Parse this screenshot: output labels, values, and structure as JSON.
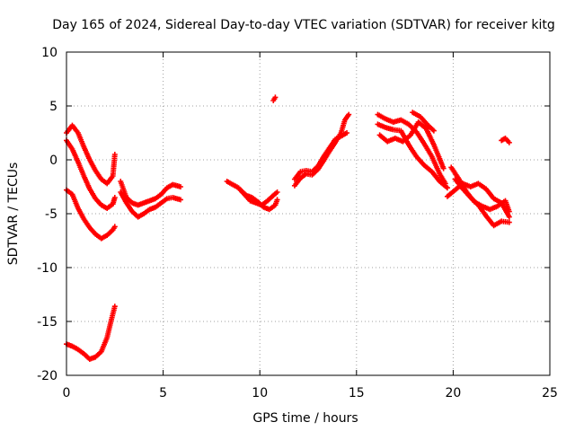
{
  "chart_data": {
    "type": "scatter",
    "title": "Day 165 of 2024, Sidereal Day-to-day VTEC variation (SDTVAR) for receiver kitg",
    "xlabel": "GPS time / hours",
    "ylabel": "SDTVAR / TECUs",
    "xlim": [
      0,
      25
    ],
    "ylim": [
      -20,
      10
    ],
    "xticks": [
      0,
      5,
      10,
      15,
      20,
      25
    ],
    "yticks": [
      -20,
      -15,
      -10,
      -5,
      0,
      5,
      10
    ],
    "grid": true,
    "marker": "+",
    "color": "#ff0000",
    "series": [
      {
        "name": "track-1",
        "points": [
          [
            0,
            2.5
          ],
          [
            0.3,
            3.2
          ],
          [
            0.6,
            2.5
          ],
          [
            0.9,
            1.2
          ],
          [
            1.2,
            0
          ],
          [
            1.5,
            -1.0
          ],
          [
            1.8,
            -1.8
          ],
          [
            2.1,
            -2.2
          ],
          [
            2.4,
            -1.5
          ],
          [
            2.5,
            0.5
          ]
        ]
      },
      {
        "name": "track-2",
        "points": [
          [
            0,
            1.8
          ],
          [
            0.3,
            1.0
          ],
          [
            0.6,
            -0.2
          ],
          [
            0.9,
            -1.5
          ],
          [
            1.2,
            -2.7
          ],
          [
            1.5,
            -3.6
          ],
          [
            1.8,
            -4.2
          ],
          [
            2.1,
            -4.5
          ],
          [
            2.4,
            -4.1
          ],
          [
            2.5,
            -3.5
          ]
        ]
      },
      {
        "name": "track-3",
        "points": [
          [
            0,
            -2.8
          ],
          [
            0.3,
            -3.2
          ],
          [
            0.6,
            -4.5
          ],
          [
            0.9,
            -5.5
          ],
          [
            1.2,
            -6.3
          ],
          [
            1.5,
            -6.9
          ],
          [
            1.8,
            -7.3
          ],
          [
            2.1,
            -7.0
          ],
          [
            2.4,
            -6.5
          ],
          [
            2.5,
            -6.2
          ]
        ]
      },
      {
        "name": "track-4",
        "points": [
          [
            0,
            -17.1
          ],
          [
            0.3,
            -17.3
          ],
          [
            0.6,
            -17.6
          ],
          [
            0.9,
            -18.0
          ],
          [
            1.2,
            -18.5
          ],
          [
            1.5,
            -18.3
          ],
          [
            1.8,
            -17.8
          ],
          [
            2.1,
            -16.5
          ],
          [
            2.3,
            -15.0
          ],
          [
            2.5,
            -13.6
          ]
        ]
      },
      {
        "name": "track-5",
        "points": [
          [
            2.8,
            -2.0
          ],
          [
            3.1,
            -3.5
          ],
          [
            3.4,
            -4.0
          ],
          [
            3.7,
            -4.2
          ],
          [
            4.0,
            -4.0
          ],
          [
            4.3,
            -3.8
          ],
          [
            4.6,
            -3.6
          ],
          [
            4.9,
            -3.2
          ],
          [
            5.2,
            -2.6
          ],
          [
            5.5,
            -2.3
          ],
          [
            5.9,
            -2.5
          ]
        ]
      },
      {
        "name": "track-6",
        "points": [
          [
            2.8,
            -3.0
          ],
          [
            3.1,
            -4.0
          ],
          [
            3.4,
            -4.8
          ],
          [
            3.7,
            -5.3
          ],
          [
            4.0,
            -5.0
          ],
          [
            4.3,
            -4.6
          ],
          [
            4.6,
            -4.4
          ],
          [
            4.9,
            -4.0
          ],
          [
            5.2,
            -3.6
          ],
          [
            5.5,
            -3.5
          ],
          [
            5.9,
            -3.7
          ]
        ]
      },
      {
        "name": "track-7",
        "points": [
          [
            8.3,
            -2.0
          ],
          [
            8.6,
            -2.3
          ],
          [
            8.9,
            -2.6
          ],
          [
            9.2,
            -3.2
          ],
          [
            9.5,
            -3.8
          ],
          [
            9.8,
            -4.0
          ],
          [
            10.1,
            -4.2
          ],
          [
            10.4,
            -3.8
          ],
          [
            10.7,
            -3.3
          ],
          [
            10.9,
            -3.0
          ]
        ]
      },
      {
        "name": "track-8",
        "points": [
          [
            9.0,
            -2.8
          ],
          [
            9.3,
            -3.3
          ],
          [
            9.6,
            -3.5
          ],
          [
            9.9,
            -3.9
          ],
          [
            10.2,
            -4.4
          ],
          [
            10.5,
            -4.6
          ],
          [
            10.8,
            -4.2
          ],
          [
            10.9,
            -3.7
          ]
        ]
      },
      {
        "name": "track-9",
        "points": [
          [
            10.7,
            5.5
          ],
          [
            10.8,
            5.8
          ]
        ]
      },
      {
        "name": "track-10",
        "points": [
          [
            11.8,
            -2.4
          ],
          [
            12.1,
            -1.7
          ],
          [
            12.4,
            -1.3
          ],
          [
            12.7,
            -1.4
          ],
          [
            13.0,
            -0.9
          ],
          [
            13.3,
            -0.1
          ],
          [
            13.6,
            0.8
          ],
          [
            13.9,
            1.6
          ],
          [
            14.2,
            2.5
          ],
          [
            14.4,
            3.7
          ],
          [
            14.6,
            4.2
          ]
        ]
      },
      {
        "name": "track-11",
        "points": [
          [
            11.8,
            -1.8
          ],
          [
            12.1,
            -1.1
          ],
          [
            12.4,
            -1.0
          ],
          [
            12.7,
            -1.1
          ],
          [
            13.0,
            -0.6
          ],
          [
            13.3,
            0.3
          ],
          [
            13.6,
            1.1
          ],
          [
            13.9,
            1.9
          ],
          [
            14.2,
            2.2
          ],
          [
            14.5,
            2.5
          ]
        ]
      },
      {
        "name": "track-12",
        "points": [
          [
            16.1,
            4.2
          ],
          [
            16.5,
            3.8
          ],
          [
            16.9,
            3.5
          ],
          [
            17.3,
            3.7
          ],
          [
            17.7,
            3.3
          ],
          [
            18.1,
            2.6
          ],
          [
            18.5,
            1.5
          ],
          [
            18.9,
            0.3
          ],
          [
            19.3,
            -1.3
          ],
          [
            19.6,
            -2.2
          ]
        ]
      },
      {
        "name": "track-13",
        "points": [
          [
            16.1,
            3.3
          ],
          [
            16.5,
            3.0
          ],
          [
            16.9,
            2.8
          ],
          [
            17.3,
            2.7
          ],
          [
            17.7,
            1.4
          ],
          [
            18.1,
            0.3
          ],
          [
            18.5,
            -0.5
          ],
          [
            18.9,
            -1.1
          ],
          [
            19.3,
            -2.0
          ],
          [
            19.7,
            -2.6
          ]
        ]
      },
      {
        "name": "track-14",
        "points": [
          [
            16.2,
            2.3
          ],
          [
            16.6,
            1.7
          ],
          [
            17.0,
            2.0
          ],
          [
            17.4,
            1.7
          ],
          [
            17.8,
            2.3
          ],
          [
            18.2,
            3.5
          ],
          [
            18.6,
            2.9
          ],
          [
            19.0,
            1.4
          ],
          [
            19.3,
            0.1
          ],
          [
            19.5,
            -0.8
          ]
        ]
      },
      {
        "name": "track-15",
        "points": [
          [
            17.9,
            4.4
          ],
          [
            18.3,
            4.0
          ],
          [
            18.7,
            3.2
          ],
          [
            19.0,
            2.7
          ]
        ]
      },
      {
        "name": "track-16",
        "points": [
          [
            19.7,
            -3.4
          ],
          [
            20.1,
            -2.8
          ],
          [
            20.5,
            -2.2
          ],
          [
            20.9,
            -2.5
          ],
          [
            21.3,
            -2.2
          ],
          [
            21.7,
            -2.7
          ],
          [
            22.1,
            -3.6
          ],
          [
            22.5,
            -4.0
          ],
          [
            22.9,
            -5.3
          ]
        ]
      },
      {
        "name": "track-17",
        "points": [
          [
            19.9,
            -0.7
          ],
          [
            20.3,
            -1.8
          ],
          [
            20.7,
            -3.0
          ],
          [
            21.1,
            -3.9
          ],
          [
            21.5,
            -4.3
          ],
          [
            21.9,
            -4.6
          ],
          [
            22.3,
            -4.3
          ],
          [
            22.7,
            -3.8
          ],
          [
            22.9,
            -4.8
          ]
        ]
      },
      {
        "name": "track-18",
        "points": [
          [
            20.1,
            -1.8
          ],
          [
            20.5,
            -2.7
          ],
          [
            20.9,
            -3.5
          ],
          [
            21.3,
            -4.2
          ],
          [
            21.7,
            -5.2
          ],
          [
            22.1,
            -6.1
          ],
          [
            22.5,
            -5.7
          ],
          [
            22.9,
            -5.8
          ]
        ]
      },
      {
        "name": "track-19",
        "points": [
          [
            22.5,
            1.8
          ],
          [
            22.7,
            2.0
          ],
          [
            22.9,
            1.6
          ]
        ]
      }
    ]
  }
}
